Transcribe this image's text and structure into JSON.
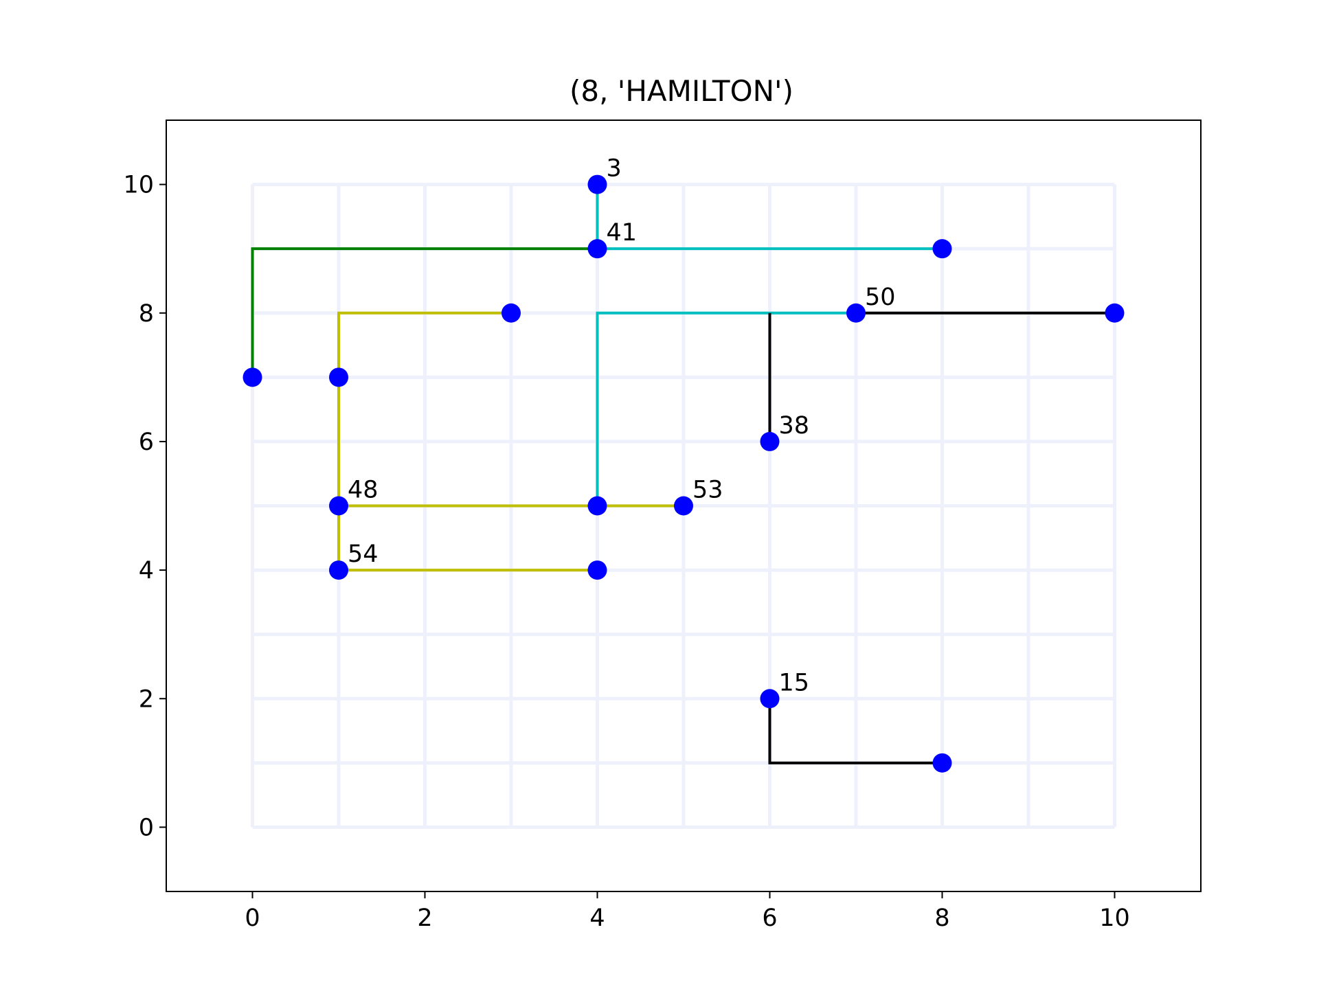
{
  "chart_data": {
    "type": "scatter",
    "title": "(8, 'HAMILTON')",
    "xlabel": "",
    "ylabel": "",
    "xlim": [
      -1,
      11
    ],
    "ylim": [
      -1,
      11
    ],
    "xticks": [
      0,
      2,
      4,
      6,
      8,
      10
    ],
    "yticks": [
      0,
      2,
      4,
      6,
      8,
      10
    ],
    "grid": {
      "x": [
        0,
        10
      ],
      "y": [
        0,
        10
      ],
      "step": 1,
      "color": "#eef0fc"
    },
    "point_color": "#0000ff",
    "points": [
      {
        "x": 4,
        "y": 10,
        "label": "3"
      },
      {
        "x": 4,
        "y": 9,
        "label": "41"
      },
      {
        "x": 8,
        "y": 9,
        "label": ""
      },
      {
        "x": 3,
        "y": 8,
        "label": ""
      },
      {
        "x": 7,
        "y": 8,
        "label": "50"
      },
      {
        "x": 10,
        "y": 8,
        "label": ""
      },
      {
        "x": 0,
        "y": 7,
        "label": ""
      },
      {
        "x": 1,
        "y": 7,
        "label": ""
      },
      {
        "x": 6,
        "y": 6,
        "label": "38"
      },
      {
        "x": 1,
        "y": 5,
        "label": "48"
      },
      {
        "x": 4,
        "y": 5,
        "label": ""
      },
      {
        "x": 5,
        "y": 5,
        "label": "53"
      },
      {
        "x": 1,
        "y": 4,
        "label": "54"
      },
      {
        "x": 4,
        "y": 4,
        "label": ""
      },
      {
        "x": 6,
        "y": 2,
        "label": "15"
      },
      {
        "x": 8,
        "y": 1,
        "label": ""
      }
    ],
    "paths": [
      {
        "color": "#008000",
        "points": [
          [
            0,
            7
          ],
          [
            0,
            9
          ],
          [
            4,
            9
          ]
        ]
      },
      {
        "color": "#00bfbf",
        "points": [
          [
            4,
            10
          ],
          [
            4,
            9
          ],
          [
            8,
            9
          ]
        ]
      },
      {
        "color": "#00bfbf",
        "points": [
          [
            4,
            5
          ],
          [
            4,
            8
          ],
          [
            7,
            8
          ]
        ]
      },
      {
        "color": "#000000",
        "points": [
          [
            7,
            8
          ],
          [
            10,
            8
          ]
        ]
      },
      {
        "color": "#000000",
        "points": [
          [
            6,
            6
          ],
          [
            6,
            8
          ]
        ]
      },
      {
        "color": "#000000",
        "points": [
          [
            6,
            2
          ],
          [
            6,
            1
          ],
          [
            8,
            1
          ]
        ]
      },
      {
        "color": "#bfbf00",
        "points": [
          [
            3,
            8
          ],
          [
            1,
            8
          ],
          [
            1,
            4
          ]
        ]
      },
      {
        "color": "#bfbf00",
        "points": [
          [
            1,
            5
          ],
          [
            5,
            5
          ]
        ]
      },
      {
        "color": "#bfbf00",
        "points": [
          [
            1,
            4
          ],
          [
            4,
            4
          ]
        ]
      }
    ]
  }
}
